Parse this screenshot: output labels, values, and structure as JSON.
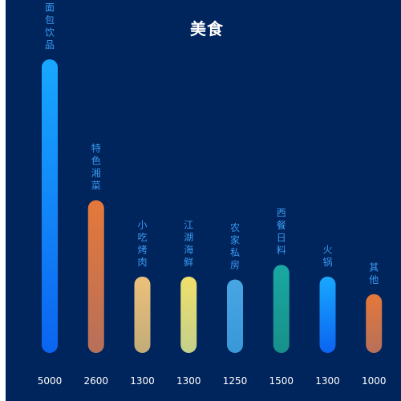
{
  "chart_data": {
    "type": "bar",
    "title": "美食",
    "categories": [
      "面包饮品",
      "特色湘菜",
      "小吃烤肉",
      "江湖海鲜",
      "农家私房",
      "西餐日料",
      "火锅",
      "其他"
    ],
    "values": [
      5000,
      2600,
      1300,
      1300,
      1250,
      1500,
      1300,
      1000
    ],
    "value_labels": [
      "5000",
      "2600",
      "1300",
      "1300",
      "1250",
      "1500",
      "1300",
      "1000"
    ],
    "ylim": [
      0,
      5000
    ],
    "xlabel": "",
    "ylabel": "",
    "grid": false,
    "legend": "none",
    "label_color": "#3a9bf0",
    "value_label_color": "#ffffff",
    "background": "#00245c",
    "bar_colors": [
      [
        "#18a8ff",
        "#0b64f0"
      ],
      [
        "#e5783a",
        "#b6705a"
      ],
      [
        "#edc07a",
        "#c2ac78"
      ],
      [
        "#f0e06a",
        "#c4d08a"
      ],
      [
        "#48a6e2",
        "#3898d8"
      ],
      [
        "#1aa8a2",
        "#17908a"
      ],
      [
        "#18a8ff",
        "#0b64f0"
      ],
      [
        "#e5783a",
        "#b6705a"
      ]
    ]
  }
}
